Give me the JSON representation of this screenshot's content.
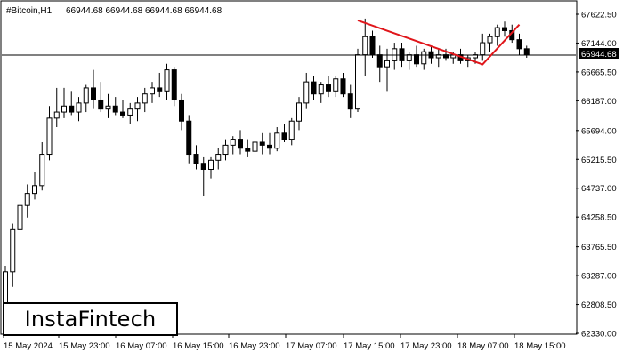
{
  "header": {
    "symbol": "#Bitcoin,H1",
    "ohlc": "66944.68 66944.68 66944.68 66944.68"
  },
  "price_tag": "66944.68",
  "logo_text": "InstaFintech",
  "colors": {
    "pattern_line": "#e0161b",
    "candle_line": "#000000",
    "bull_fill": "#ffffff",
    "bear_fill": "#000000"
  },
  "chart_data": {
    "type": "candlestick",
    "title": "",
    "current_price": 66944.68,
    "y_ticks": [
      "67622.50",
      "67144.00",
      "66665.50",
      "66187.00",
      "65694.00",
      "65215.50",
      "64737.00",
      "64258.50",
      "63765.50",
      "63287.00",
      "62808.50",
      "62330.00"
    ],
    "ylim": [
      62330.0,
      67800.0
    ],
    "x_ticks": [
      "15 May 2024",
      "15 May 23:00",
      "16 May 07:00",
      "16 May 15:00",
      "16 May 23:00",
      "17 May 07:00",
      "17 May 15:00",
      "17 May 23:00",
      "18 May 07:00",
      "18 May 15:00"
    ],
    "candles": [
      {
        "o": 62350,
        "h": 63450,
        "l": 62330,
        "c": 63350
      },
      {
        "o": 63350,
        "h": 64150,
        "l": 63100,
        "c": 64050
      },
      {
        "o": 64050,
        "h": 64550,
        "l": 63850,
        "c": 64450
      },
      {
        "o": 64450,
        "h": 64800,
        "l": 64250,
        "c": 64650
      },
      {
        "o": 64650,
        "h": 65000,
        "l": 64550,
        "c": 64780
      },
      {
        "o": 64780,
        "h": 65500,
        "l": 64700,
        "c": 65300
      },
      {
        "o": 65300,
        "h": 66100,
        "l": 65200,
        "c": 65900
      },
      {
        "o": 65900,
        "h": 66400,
        "l": 65750,
        "c": 66000
      },
      {
        "o": 66000,
        "h": 66400,
        "l": 65900,
        "c": 66100
      },
      {
        "o": 66100,
        "h": 66350,
        "l": 65950,
        "c": 66000
      },
      {
        "o": 66000,
        "h": 66250,
        "l": 65850,
        "c": 66150
      },
      {
        "o": 66150,
        "h": 66450,
        "l": 66000,
        "c": 66400
      },
      {
        "o": 66400,
        "h": 66700,
        "l": 66050,
        "c": 66200
      },
      {
        "o": 66200,
        "h": 66500,
        "l": 66000,
        "c": 66050
      },
      {
        "o": 66050,
        "h": 66300,
        "l": 65900,
        "c": 66100
      },
      {
        "o": 66100,
        "h": 66250,
        "l": 65950,
        "c": 66000
      },
      {
        "o": 66000,
        "h": 66200,
        "l": 65900,
        "c": 65950
      },
      {
        "o": 65950,
        "h": 66150,
        "l": 65800,
        "c": 66050
      },
      {
        "o": 66050,
        "h": 66250,
        "l": 65850,
        "c": 66150
      },
      {
        "o": 66150,
        "h": 66400,
        "l": 66000,
        "c": 66300
      },
      {
        "o": 66300,
        "h": 66500,
        "l": 66150,
        "c": 66400
      },
      {
        "o": 66400,
        "h": 66650,
        "l": 66250,
        "c": 66350
      },
      {
        "o": 66350,
        "h": 66800,
        "l": 66200,
        "c": 66700
      },
      {
        "o": 66700,
        "h": 66750,
        "l": 66100,
        "c": 66200
      },
      {
        "o": 66200,
        "h": 66300,
        "l": 65700,
        "c": 65850
      },
      {
        "o": 65850,
        "h": 65950,
        "l": 65150,
        "c": 65300
      },
      {
        "o": 65300,
        "h": 65450,
        "l": 65050,
        "c": 65150
      },
      {
        "o": 65150,
        "h": 65250,
        "l": 64600,
        "c": 65050
      },
      {
        "o": 65050,
        "h": 65250,
        "l": 64900,
        "c": 65200
      },
      {
        "o": 65200,
        "h": 65400,
        "l": 65050,
        "c": 65300
      },
      {
        "o": 65300,
        "h": 65550,
        "l": 65200,
        "c": 65450
      },
      {
        "o": 65450,
        "h": 65600,
        "l": 65300,
        "c": 65550
      },
      {
        "o": 65550,
        "h": 65700,
        "l": 65300,
        "c": 65400
      },
      {
        "o": 65400,
        "h": 65550,
        "l": 65250,
        "c": 65350
      },
      {
        "o": 65350,
        "h": 65550,
        "l": 65250,
        "c": 65500
      },
      {
        "o": 65500,
        "h": 65650,
        "l": 65300,
        "c": 65450
      },
      {
        "o": 65450,
        "h": 65650,
        "l": 65300,
        "c": 65400
      },
      {
        "o": 65400,
        "h": 65750,
        "l": 65350,
        "c": 65650
      },
      {
        "o": 65650,
        "h": 65800,
        "l": 65500,
        "c": 65550
      },
      {
        "o": 65550,
        "h": 65900,
        "l": 65450,
        "c": 65850
      },
      {
        "o": 65850,
        "h": 66250,
        "l": 65700,
        "c": 66150
      },
      {
        "o": 66150,
        "h": 66650,
        "l": 66050,
        "c": 66500
      },
      {
        "o": 66500,
        "h": 66600,
        "l": 66200,
        "c": 66300
      },
      {
        "o": 66300,
        "h": 66500,
        "l": 66150,
        "c": 66450
      },
      {
        "o": 66450,
        "h": 66600,
        "l": 66250,
        "c": 66350
      },
      {
        "o": 66350,
        "h": 66600,
        "l": 66250,
        "c": 66550
      },
      {
        "o": 66550,
        "h": 66650,
        "l": 66250,
        "c": 66300
      },
      {
        "o": 66300,
        "h": 66450,
        "l": 65900,
        "c": 66050
      },
      {
        "o": 66050,
        "h": 67050,
        "l": 66000,
        "c": 66950
      },
      {
        "o": 66950,
        "h": 67550,
        "l": 66600,
        "c": 67250
      },
      {
        "o": 67250,
        "h": 67350,
        "l": 66900,
        "c": 66950
      },
      {
        "o": 66950,
        "h": 67100,
        "l": 66500,
        "c": 66750
      },
      {
        "o": 66750,
        "h": 67050,
        "l": 66350,
        "c": 66850
      },
      {
        "o": 66850,
        "h": 67150,
        "l": 66700,
        "c": 67050
      },
      {
        "o": 67050,
        "h": 67150,
        "l": 66750,
        "c": 66850
      },
      {
        "o": 66850,
        "h": 67000,
        "l": 66700,
        "c": 66950
      },
      {
        "o": 66950,
        "h": 67100,
        "l": 66750,
        "c": 66800
      },
      {
        "o": 66800,
        "h": 67050,
        "l": 66700,
        "c": 67000
      },
      {
        "o": 67000,
        "h": 67100,
        "l": 66800,
        "c": 66900
      },
      {
        "o": 66900,
        "h": 67050,
        "l": 66750,
        "c": 66950
      },
      {
        "o": 66950,
        "h": 67050,
        "l": 66850,
        "c": 66900
      },
      {
        "o": 66900,
        "h": 67000,
        "l": 66800,
        "c": 66950
      },
      {
        "o": 66950,
        "h": 67050,
        "l": 66800,
        "c": 66850
      },
      {
        "o": 66850,
        "h": 66950,
        "l": 66750,
        "c": 66900
      },
      {
        "o": 66900,
        "h": 67000,
        "l": 66800,
        "c": 66950
      },
      {
        "o": 66950,
        "h": 67300,
        "l": 66850,
        "c": 67150
      },
      {
        "o": 67150,
        "h": 67300,
        "l": 67000,
        "c": 67250
      },
      {
        "o": 67250,
        "h": 67450,
        "l": 67100,
        "c": 67400
      },
      {
        "o": 67400,
        "h": 67500,
        "l": 67250,
        "c": 67350
      },
      {
        "o": 67350,
        "h": 67450,
        "l": 67150,
        "c": 67200
      },
      {
        "o": 67200,
        "h": 67300,
        "l": 66950,
        "c": 67050
      },
      {
        "o": 67050,
        "h": 67100,
        "l": 66900,
        "c": 66945
      }
    ],
    "pattern_line": {
      "points": [
        [
          48,
          67520
        ],
        [
          65,
          66790
        ],
        [
          70,
          67450
        ]
      ]
    }
  }
}
